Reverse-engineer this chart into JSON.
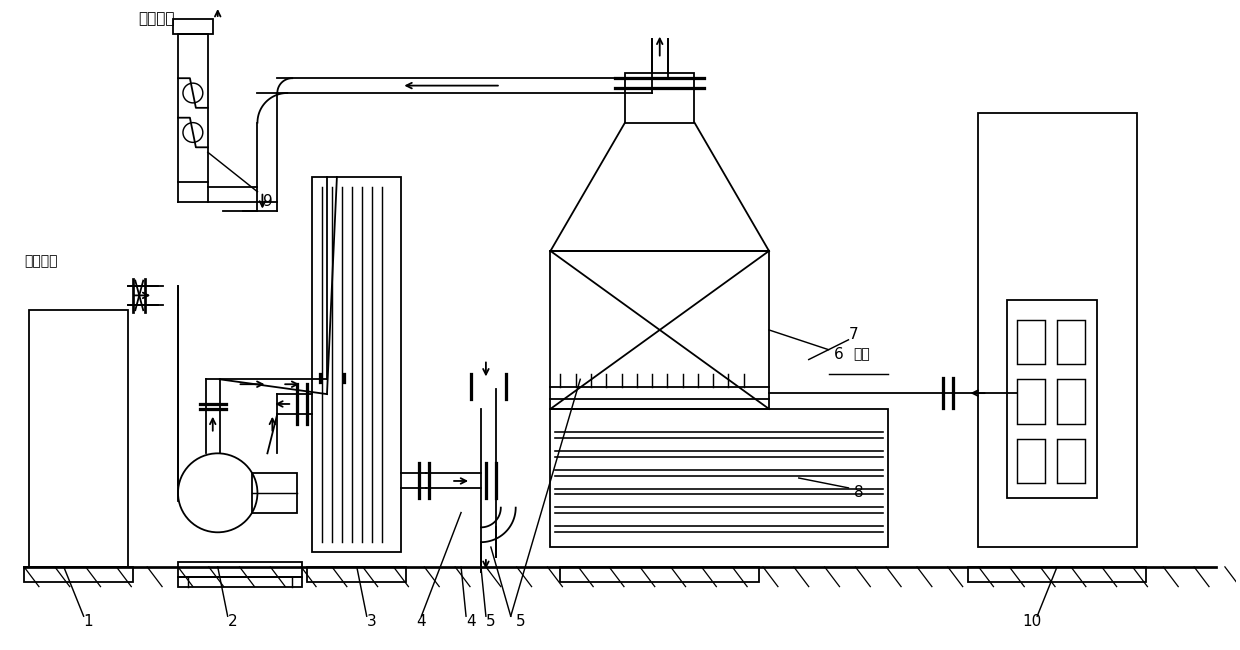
{
  "bg_color": "#ffffff",
  "line_color": "#000000",
  "lw": 1.3,
  "fig_width": 12.4,
  "fig_height": 6.5,
  "labels": {
    "top_label": "净化气体",
    "left_label": "有机废气",
    "ozone_label": "臭氧"
  }
}
